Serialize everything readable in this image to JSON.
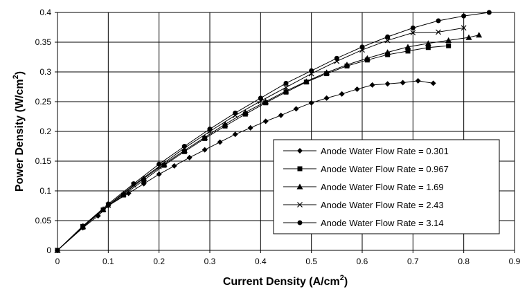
{
  "chart_data": {
    "type": "line",
    "title": "",
    "xlabel": "Current Density (A/cm",
    "xlabel_sup": "2",
    "xlabel_end": ")",
    "ylabel": "Power Density (W/cm",
    "ylabel_sup": "2",
    "ylabel_end": ")",
    "xlim": [
      0,
      0.9
    ],
    "ylim": [
      0,
      0.4
    ],
    "xticks": [
      "0",
      "0.1",
      "0.2",
      "0.3",
      "0.4",
      "0.5",
      "0.6",
      "0.7",
      "0.8",
      "0.9"
    ],
    "yticks": [
      "0",
      "0.05",
      "0.1",
      "0.15",
      "0.2",
      "0.25",
      "0.3",
      "0.35",
      "0.4"
    ],
    "xtick_values": [
      0,
      0.1,
      0.2,
      0.3,
      0.4,
      0.5,
      0.6,
      0.7,
      0.8,
      0.9
    ],
    "ytick_values": [
      0,
      0.05,
      0.1,
      0.15,
      0.2,
      0.25,
      0.3,
      0.35,
      0.4
    ],
    "grid": true,
    "legend_position": "lower-right",
    "series": [
      {
        "name": "Anode Water Flow Rate = 0.301",
        "marker": "diamond",
        "x": [
          0,
          0.05,
          0.08,
          0.1,
          0.14,
          0.17,
          0.2,
          0.23,
          0.26,
          0.29,
          0.32,
          0.35,
          0.38,
          0.41,
          0.44,
          0.47,
          0.5,
          0.53,
          0.56,
          0.59,
          0.62,
          0.65,
          0.68,
          0.71,
          0.74
        ],
        "y": [
          0,
          0.038,
          0.058,
          0.075,
          0.096,
          0.112,
          0.128,
          0.142,
          0.156,
          0.169,
          0.182,
          0.195,
          0.206,
          0.217,
          0.227,
          0.238,
          0.248,
          0.256,
          0.263,
          0.271,
          0.278,
          0.28,
          0.282,
          0.285,
          0.281
        ]
      },
      {
        "name": "Anode Water Flow Rate = 0.967",
        "marker": "square",
        "x": [
          0,
          0.05,
          0.09,
          0.13,
          0.17,
          0.21,
          0.25,
          0.29,
          0.33,
          0.37,
          0.41,
          0.45,
          0.49,
          0.53,
          0.57,
          0.61,
          0.65,
          0.69,
          0.73,
          0.77
        ],
        "y": [
          0,
          0.039,
          0.068,
          0.093,
          0.118,
          0.143,
          0.166,
          0.188,
          0.209,
          0.229,
          0.248,
          0.266,
          0.283,
          0.297,
          0.31,
          0.32,
          0.329,
          0.335,
          0.341,
          0.344
        ]
      },
      {
        "name": "Anode Water Flow Rate = 1.69",
        "marker": "triangle",
        "x": [
          0,
          0.05,
          0.09,
          0.13,
          0.17,
          0.21,
          0.25,
          0.29,
          0.33,
          0.37,
          0.41,
          0.45,
          0.49,
          0.53,
          0.57,
          0.61,
          0.65,
          0.69,
          0.73,
          0.77,
          0.81,
          0.83
        ],
        "y": [
          0,
          0.04,
          0.069,
          0.095,
          0.121,
          0.145,
          0.168,
          0.19,
          0.212,
          0.232,
          0.25,
          0.268,
          0.284,
          0.299,
          0.312,
          0.323,
          0.333,
          0.342,
          0.348,
          0.353,
          0.358,
          0.362
        ]
      },
      {
        "name": "Anode Water Flow Rate = 2.43",
        "marker": "x",
        "x": [
          0,
          0.05,
          0.1,
          0.15,
          0.2,
          0.25,
          0.3,
          0.35,
          0.4,
          0.45,
          0.5,
          0.55,
          0.6,
          0.65,
          0.7,
          0.75,
          0.8
        ],
        "y": [
          0,
          0.04,
          0.076,
          0.11,
          0.141,
          0.172,
          0.2,
          0.227,
          0.251,
          0.274,
          0.297,
          0.318,
          0.337,
          0.353,
          0.366,
          0.367,
          0.374
        ]
      },
      {
        "name": "Anode Water Flow Rate = 3.14",
        "marker": "circle",
        "x": [
          0,
          0.05,
          0.1,
          0.15,
          0.2,
          0.25,
          0.3,
          0.35,
          0.4,
          0.45,
          0.5,
          0.55,
          0.6,
          0.65,
          0.7,
          0.75,
          0.8,
          0.85
        ],
        "y": [
          0,
          0.041,
          0.078,
          0.112,
          0.145,
          0.175,
          0.204,
          0.231,
          0.256,
          0.281,
          0.302,
          0.323,
          0.342,
          0.359,
          0.374,
          0.386,
          0.394,
          0.4
        ]
      }
    ]
  }
}
